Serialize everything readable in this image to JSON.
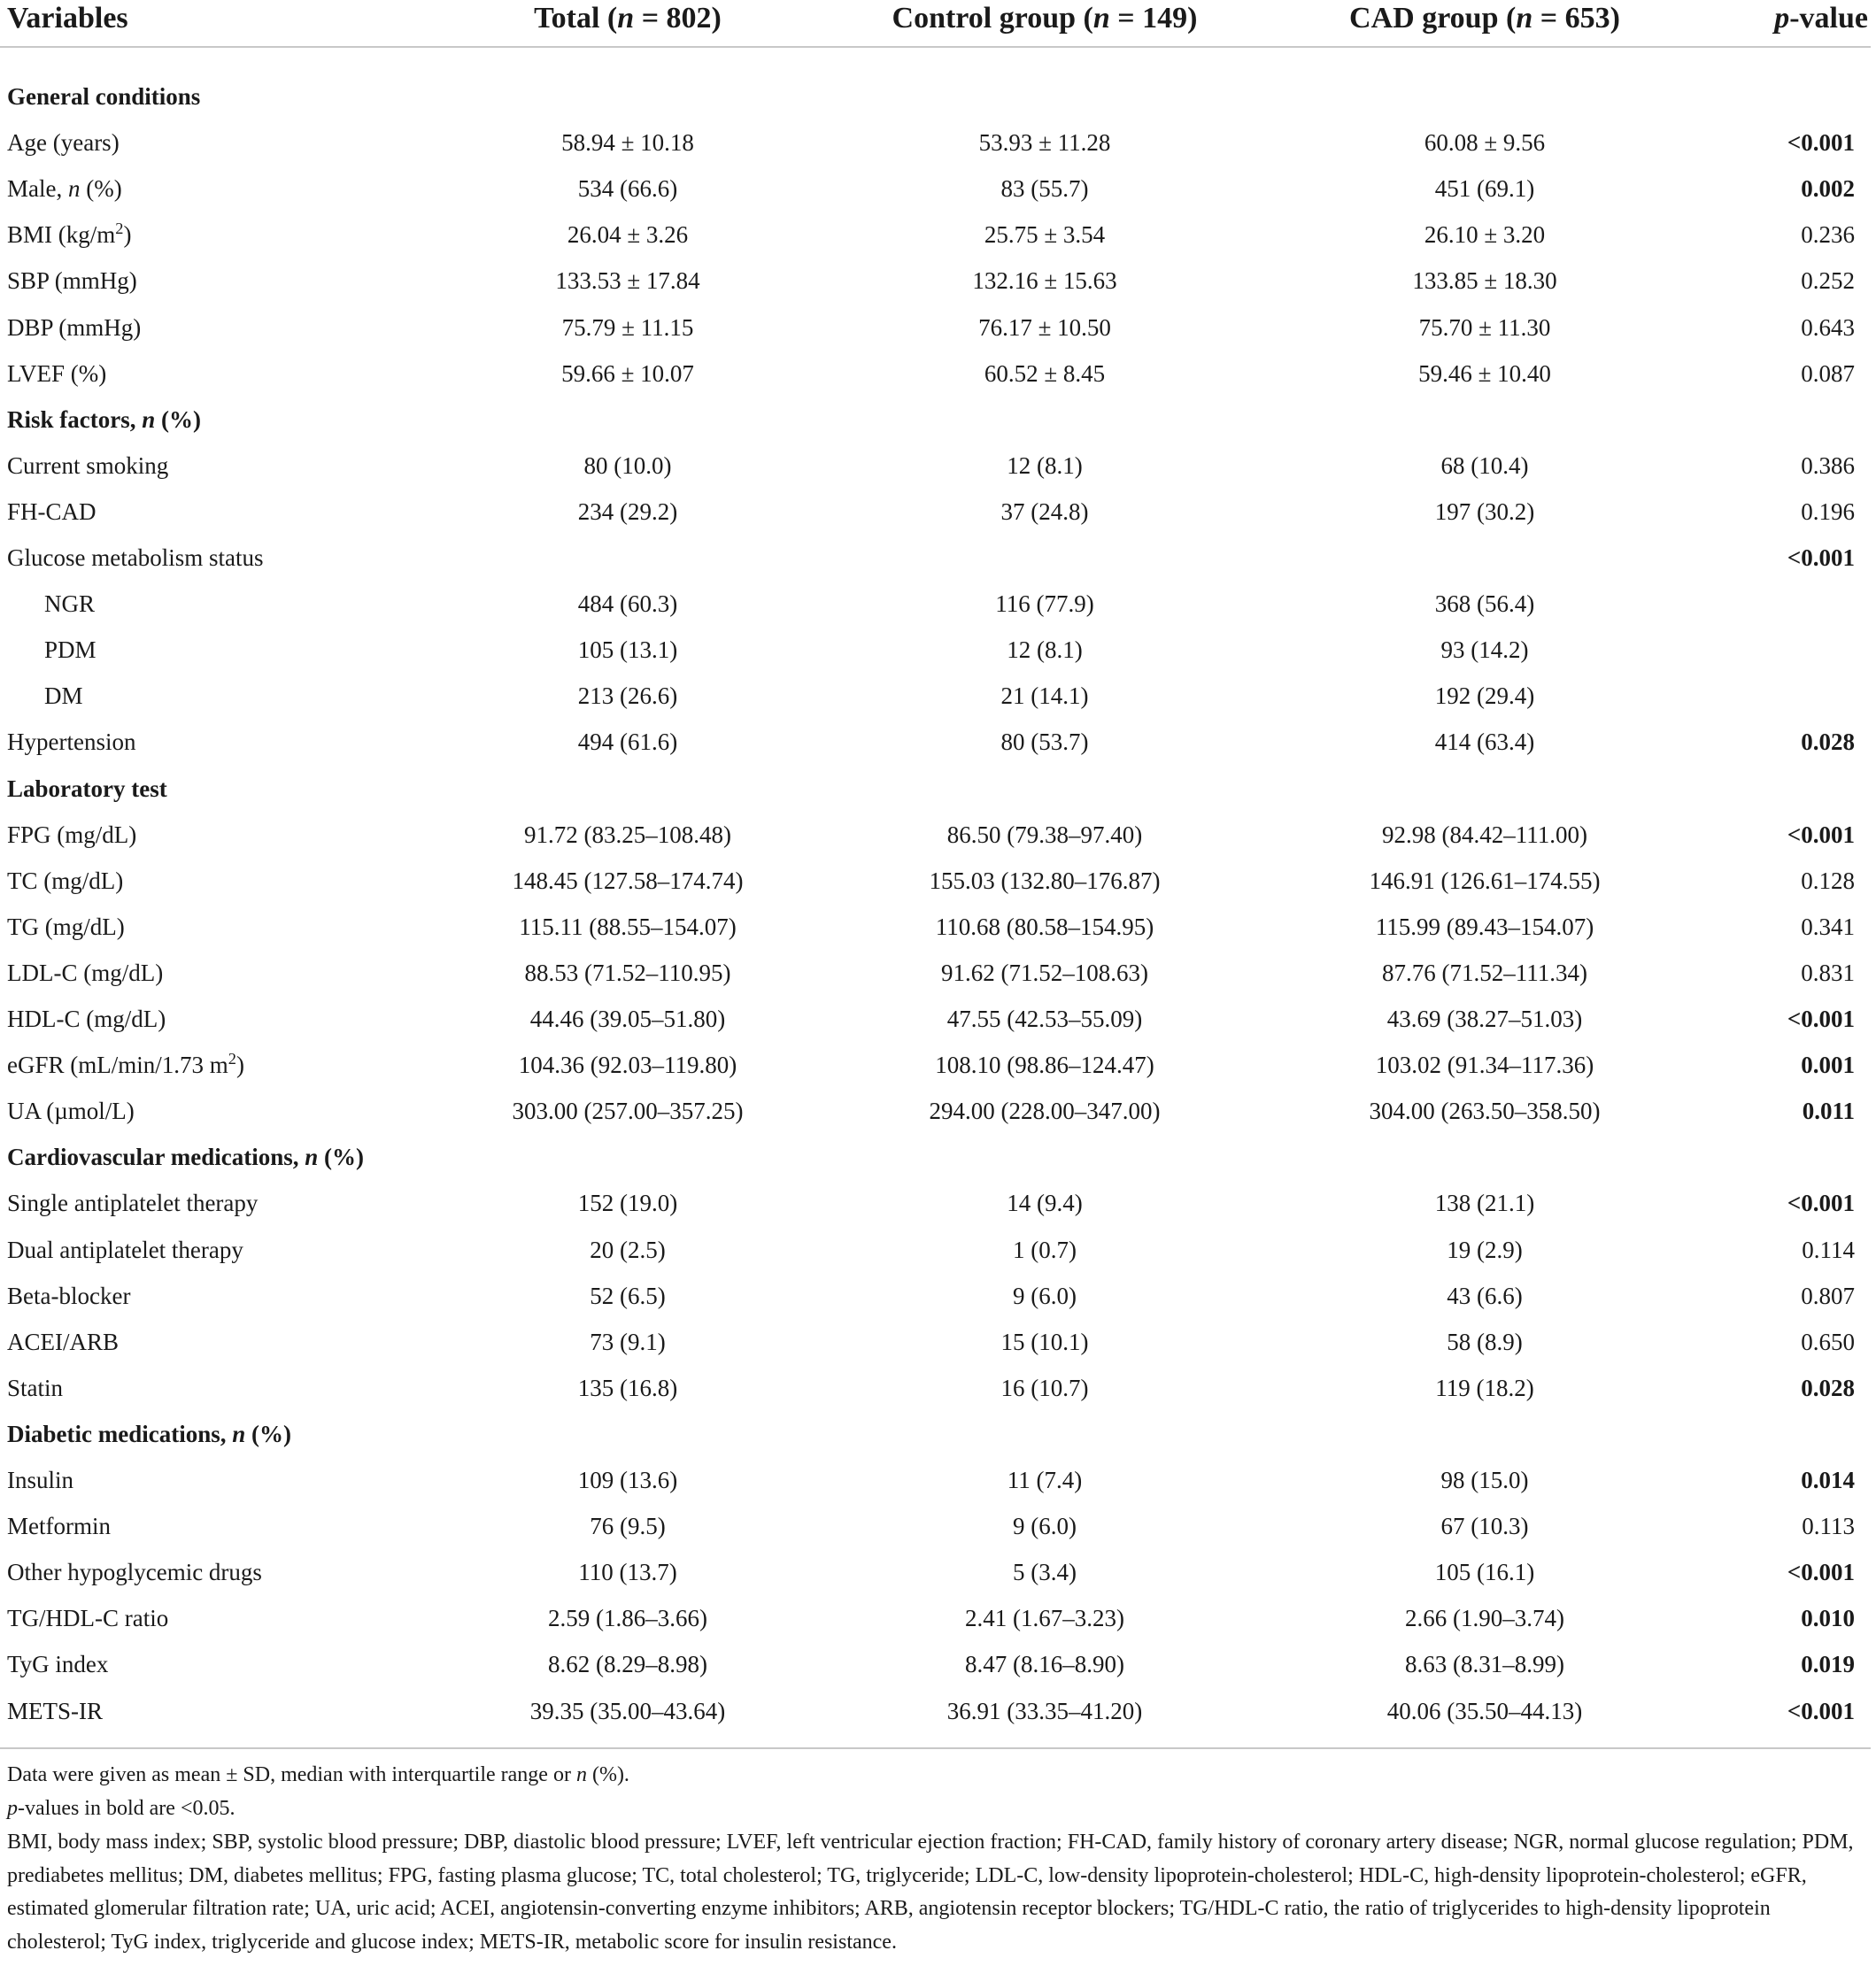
{
  "table": {
    "header": [
      "Variables",
      [
        [
          "Total ("
        ],
        [
          "n",
          "i"
        ],
        [
          " = 802)"
        ]
      ],
      [
        [
          "Control group ("
        ],
        [
          "n",
          "i"
        ],
        [
          " = 149)"
        ]
      ],
      [
        [
          "CAD group ("
        ],
        [
          "n",
          "i"
        ],
        [
          " = 653)"
        ]
      ],
      [
        [
          "p",
          "i"
        ],
        [
          "-value"
        ]
      ]
    ],
    "rows": [
      {
        "section": "General conditions"
      },
      {
        "label": "Age (years)",
        "values": [
          "58.94 ± 10.18",
          "53.93 ± 11.28",
          "60.08 ± 9.56"
        ],
        "p": "<0.001",
        "sig": true
      },
      {
        "label": [
          [
            "Male, "
          ],
          [
            "n",
            "i"
          ],
          [
            " (%)"
          ]
        ],
        "values": [
          "534 (66.6)",
          "83 (55.7)",
          "451 (69.1)"
        ],
        "p": "0.002",
        "sig": true
      },
      {
        "label": [
          [
            "BMI (kg/m"
          ],
          [
            "2",
            "sup"
          ],
          [
            ")"
          ]
        ],
        "values": [
          "26.04 ± 3.26",
          "25.75 ± 3.54",
          "26.10 ± 3.20"
        ],
        "p": "0.236"
      },
      {
        "label": "SBP (mmHg)",
        "values": [
          "133.53 ± 17.84",
          "132.16 ± 15.63",
          "133.85 ± 18.30"
        ],
        "p": "0.252"
      },
      {
        "label": "DBP (mmHg)",
        "values": [
          "75.79 ± 11.15",
          "76.17 ± 10.50",
          "75.70 ± 11.30"
        ],
        "p": "0.643"
      },
      {
        "label": "LVEF (%)",
        "values": [
          "59.66 ± 10.07",
          "60.52 ± 8.45",
          "59.46 ± 10.40"
        ],
        "p": "0.087"
      },
      {
        "section": [
          [
            "Risk factors, "
          ],
          [
            "n",
            "i"
          ],
          [
            " (%)"
          ]
        ]
      },
      {
        "label": "Current smoking",
        "values": [
          "80 (10.0)",
          "12 (8.1)",
          "68 (10.4)"
        ],
        "p": "0.386"
      },
      {
        "label": "FH-CAD",
        "values": [
          "234 (29.2)",
          "37 (24.8)",
          "197 (30.2)"
        ],
        "p": "0.196"
      },
      {
        "label": "Glucose metabolism status",
        "p": "<0.001",
        "sig": true
      },
      {
        "label": "NGR",
        "indent": true,
        "values": [
          "484 (60.3)",
          "116 (77.9)",
          "368 (56.4)"
        ]
      },
      {
        "label": "PDM",
        "indent": true,
        "values": [
          "105 (13.1)",
          "12 (8.1)",
          "93 (14.2)"
        ]
      },
      {
        "label": "DM",
        "indent": true,
        "values": [
          "213 (26.6)",
          "21 (14.1)",
          "192 (29.4)"
        ]
      },
      {
        "label": "Hypertension",
        "values": [
          "494 (61.6)",
          "80 (53.7)",
          "414 (63.4)"
        ],
        "p": "0.028",
        "sig": true
      },
      {
        "section": "Laboratory test"
      },
      {
        "label": "FPG (mg/dL)",
        "values": [
          "91.72 (83.25–108.48)",
          "86.50 (79.38–97.40)",
          "92.98 (84.42–111.00)"
        ],
        "p": "<0.001",
        "sig": true
      },
      {
        "label": "TC (mg/dL)",
        "values": [
          "148.45 (127.58–174.74)",
          "155.03 (132.80–176.87)",
          "146.91 (126.61–174.55)"
        ],
        "p": "0.128"
      },
      {
        "label": "TG (mg/dL)",
        "values": [
          "115.11 (88.55–154.07)",
          "110.68 (80.58–154.95)",
          "115.99 (89.43–154.07)"
        ],
        "p": "0.341"
      },
      {
        "label": "LDL-C (mg/dL)",
        "values": [
          "88.53 (71.52–110.95)",
          "91.62 (71.52–108.63)",
          "87.76 (71.52–111.34)"
        ],
        "p": "0.831"
      },
      {
        "label": "HDL-C (mg/dL)",
        "values": [
          "44.46 (39.05–51.80)",
          "47.55 (42.53–55.09)",
          "43.69 (38.27–51.03)"
        ],
        "p": "<0.001",
        "sig": true
      },
      {
        "label": [
          [
            "eGFR (mL/min/1.73 m"
          ],
          [
            "2",
            "sup"
          ],
          [
            ")"
          ]
        ],
        "values": [
          "104.36 (92.03–119.80)",
          "108.10 (98.86–124.47)",
          "103.02 (91.34–117.36)"
        ],
        "p": "0.001",
        "sig": true
      },
      {
        "label": "UA (µmol/L)",
        "values": [
          "303.00 (257.00–357.25)",
          "294.00 (228.00–347.00)",
          "304.00 (263.50–358.50)"
        ],
        "p": "0.011",
        "sig": true
      },
      {
        "section": [
          [
            "Cardiovascular medications, "
          ],
          [
            "n",
            "i"
          ],
          [
            " (%)"
          ]
        ]
      },
      {
        "label": "Single antiplatelet therapy",
        "values": [
          "152 (19.0)",
          "14 (9.4)",
          "138 (21.1)"
        ],
        "p": "<0.001",
        "sig": true
      },
      {
        "label": "Dual antiplatelet therapy",
        "values": [
          "20 (2.5)",
          "1 (0.7)",
          "19 (2.9)"
        ],
        "p": "0.114"
      },
      {
        "label": "Beta-blocker",
        "values": [
          "52 (6.5)",
          "9 (6.0)",
          "43 (6.6)"
        ],
        "p": "0.807"
      },
      {
        "label": "ACEI/ARB",
        "values": [
          "73 (9.1)",
          "15 (10.1)",
          "58 (8.9)"
        ],
        "p": "0.650"
      },
      {
        "label": "Statin",
        "values": [
          "135 (16.8)",
          "16 (10.7)",
          "119 (18.2)"
        ],
        "p": "0.028",
        "sig": true
      },
      {
        "section": [
          [
            "Diabetic medications, "
          ],
          [
            "n",
            "i"
          ],
          [
            " (%)"
          ]
        ]
      },
      {
        "label": "Insulin",
        "values": [
          "109 (13.6)",
          "11 (7.4)",
          "98 (15.0)"
        ],
        "p": "0.014",
        "sig": true
      },
      {
        "label": "Metformin",
        "values": [
          "76 (9.5)",
          "9 (6.0)",
          "67 (10.3)"
        ],
        "p": "0.113"
      },
      {
        "label": "Other hypoglycemic drugs",
        "values": [
          "110 (13.7)",
          "5 (3.4)",
          "105 (16.1)"
        ],
        "p": "<0.001",
        "sig": true
      },
      {
        "label": "TG/HDL-C ratio",
        "values": [
          "2.59 (1.86–3.66)",
          "2.41 (1.67–3.23)",
          "2.66 (1.90–3.74)"
        ],
        "p": "0.010",
        "sig": true
      },
      {
        "label": "TyG index",
        "values": [
          "8.62 (8.29–8.98)",
          "8.47 (8.16–8.90)",
          "8.63 (8.31–8.99)"
        ],
        "p": "0.019",
        "sig": true
      },
      {
        "label": "METS-IR",
        "values": [
          "39.35 (35.00–43.64)",
          "36.91 (33.35–41.20)",
          "40.06 (35.50–44.13)"
        ],
        "p": "<0.001",
        "sig": true
      }
    ],
    "notes": [
      [
        [
          "Data were given as mean ± SD, median with interquartile range or "
        ],
        [
          "n",
          "i"
        ],
        [
          " (%)."
        ]
      ],
      [
        [
          "p",
          "i"
        ],
        [
          "-values in bold are <0.05."
        ]
      ],
      "BMI, body mass index; SBP, systolic blood pressure; DBP, diastolic blood pressure; LVEF, left ventricular ejection fraction; FH-CAD, family history of coronary artery disease; NGR, normal glucose regulation; PDM, prediabetes mellitus; DM, diabetes mellitus; FPG, fasting plasma glucose; TC, total cholesterol; TG, triglyceride; LDL-C, low-density lipoprotein-cholesterol; HDL-C, high-density lipoprotein-cholesterol; eGFR, estimated glomerular filtration rate; UA, uric acid; ACEI, angiotensin-converting enzyme inhibitors; ARB, angiotensin receptor blockers; TG/HDL-C ratio, the ratio of triglycerides to high-density lipoprotein cholesterol; TyG index, triglyceride and glucose index; METS-IR, metabolic score for insulin resistance."
    ]
  }
}
